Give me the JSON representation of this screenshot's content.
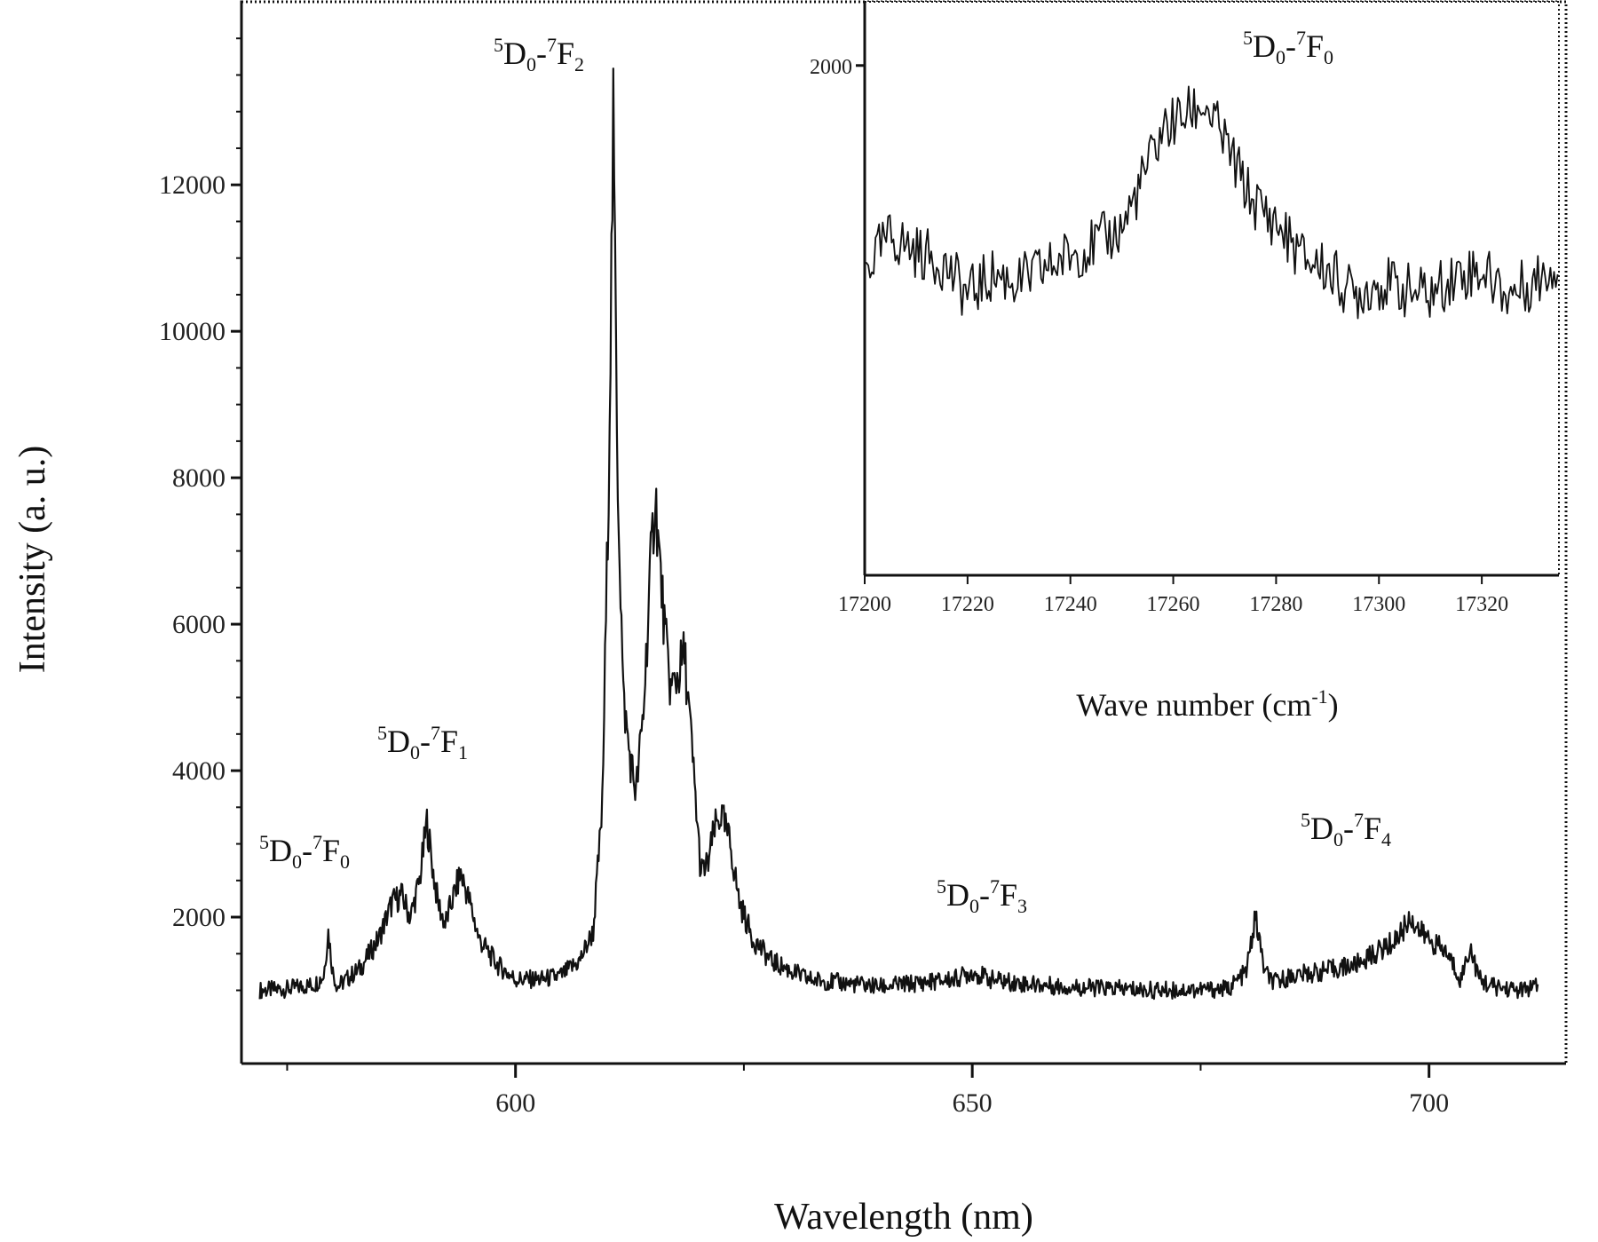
{
  "chart_data": [
    {
      "type": "line",
      "xlabel": "Wavelength (nm)",
      "ylabel": "Intensity (a. u.)",
      "xlim": [
        570,
        715
      ],
      "ylim": [
        0,
        14500
      ],
      "x_ticks": [
        {
          "value": 600,
          "label": "600"
        },
        {
          "value": 650,
          "label": "650"
        },
        {
          "value": 700,
          "label": "700"
        }
      ],
      "y_ticks": [
        {
          "value": 2000,
          "label": "2000"
        },
        {
          "value": 4000,
          "label": "4000"
        },
        {
          "value": 6000,
          "label": "6000"
        },
        {
          "value": 8000,
          "label": "8000"
        },
        {
          "value": 10000,
          "label": "10000"
        },
        {
          "value": 12000,
          "label": "12000"
        }
      ],
      "grid": false,
      "series": [
        {
          "x": [
            572,
            575,
            578,
            579,
            579.5,
            580,
            580.5,
            581,
            583,
            585,
            586.5,
            587.5,
            588.5,
            589.5,
            590.3,
            591,
            591.5,
            592.3,
            593,
            594,
            595,
            596,
            598,
            600,
            603,
            605,
            607,
            608.5,
            609.5,
            610.2,
            610.7,
            611.2,
            611.8,
            612.5,
            613.2,
            614,
            614.8,
            615.3,
            615.8,
            616.4,
            617,
            617.8,
            618.5,
            619.3,
            620.3,
            621,
            621.8,
            622.5,
            623.5,
            624.5,
            626,
            628,
            632,
            640,
            648,
            650,
            652,
            655,
            660,
            670,
            678,
            680,
            681,
            682,
            683,
            685,
            688,
            692,
            696,
            697,
            698,
            699,
            700,
            702,
            703.5,
            704.5,
            705.5,
            707,
            710,
            712
          ],
          "y": [
            1000,
            1020,
            1080,
            1200,
            1800,
            1250,
            1050,
            1100,
            1300,
            1700,
            2200,
            2300,
            2000,
            2500,
            3300,
            2600,
            2200,
            1900,
            2200,
            2600,
            2200,
            1700,
            1350,
            1150,
            1150,
            1200,
            1400,
            1800,
            3500,
            8000,
            12800,
            8000,
            5000,
            4200,
            3700,
            4800,
            6800,
            7800,
            6800,
            5800,
            5100,
            5300,
            5600,
            4300,
            2600,
            2700,
            3200,
            3400,
            3000,
            2200,
            1700,
            1400,
            1150,
            1050,
            1150,
            1250,
            1150,
            1100,
            1050,
            1000,
            1020,
            1250,
            2000,
            1250,
            1100,
            1200,
            1250,
            1350,
            1650,
            1800,
            2000,
            1800,
            1700,
            1500,
            1150,
            1600,
            1150,
            1050,
            1000,
            1050
          ]
        }
      ],
      "annotations": [
        {
          "prefix": "5",
          "main": "D",
          "msub": "0",
          "dash": "-",
          "tsup": "7",
          "target": "F",
          "tsub": "0",
          "near_x": 579.5
        },
        {
          "prefix": "5",
          "main": "D",
          "msub": "0",
          "dash": "-",
          "tsup": "7",
          "target": "F",
          "tsub": "1",
          "near_x": 590
        },
        {
          "prefix": "5",
          "main": "D",
          "msub": "0",
          "dash": "-",
          "tsup": "7",
          "target": "F",
          "tsub": "2",
          "near_x": 611
        },
        {
          "prefix": "5",
          "main": "D",
          "msub": "0",
          "dash": "-",
          "tsup": "7",
          "target": "F",
          "tsub": "3",
          "near_x": 654
        },
        {
          "prefix": "5",
          "main": "D",
          "msub": "0",
          "dash": "-",
          "tsup": "7",
          "target": "F",
          "tsub": "4",
          "near_x": 696
        }
      ]
    },
    {
      "type": "line",
      "inset": true,
      "xlabel": "Wave number (cm",
      "xlabel_sup": "-1",
      "xlabel_close": ")",
      "xlim": [
        17200,
        17335
      ],
      "ylim": [
        0,
        2250
      ],
      "x_ticks": [
        {
          "value": 17200,
          "label": "17200"
        },
        {
          "value": 17220,
          "label": "17220"
        },
        {
          "value": 17240,
          "label": "17240"
        },
        {
          "value": 17260,
          "label": "17260"
        },
        {
          "value": 17280,
          "label": "17280"
        },
        {
          "value": 17300,
          "label": "17300"
        },
        {
          "value": 17320,
          "label": "17320"
        }
      ],
      "x_tick_labels_visible": [
        "17200",
        "17220",
        "17240",
        "17260",
        "17280",
        "17300",
        "17320"
      ],
      "y_ticks": [
        {
          "value": 2000,
          "label": "2000"
        }
      ],
      "series": [
        {
          "x": [
            17200,
            17205,
            17210,
            17215,
            17220,
            17225,
            17230,
            17235,
            17240,
            17245,
            17250,
            17255,
            17258,
            17262,
            17266,
            17270,
            17275,
            17280,
            17285,
            17290,
            17295,
            17300,
            17305,
            17310,
            17315,
            17320,
            17325,
            17330,
            17335
          ],
          "y": [
            1200,
            1330,
            1270,
            1230,
            1100,
            1180,
            1150,
            1200,
            1260,
            1300,
            1360,
            1600,
            1750,
            1800,
            1850,
            1700,
            1480,
            1380,
            1250,
            1200,
            1100,
            1150,
            1120,
            1100,
            1180,
            1200,
            1100,
            1150,
            1230
          ]
        }
      ],
      "annotations": [
        {
          "prefix": "5",
          "main": "D",
          "msub": "0",
          "dash": "-",
          "tsup": "7",
          "target": "F",
          "tsub": "0"
        }
      ]
    }
  ]
}
